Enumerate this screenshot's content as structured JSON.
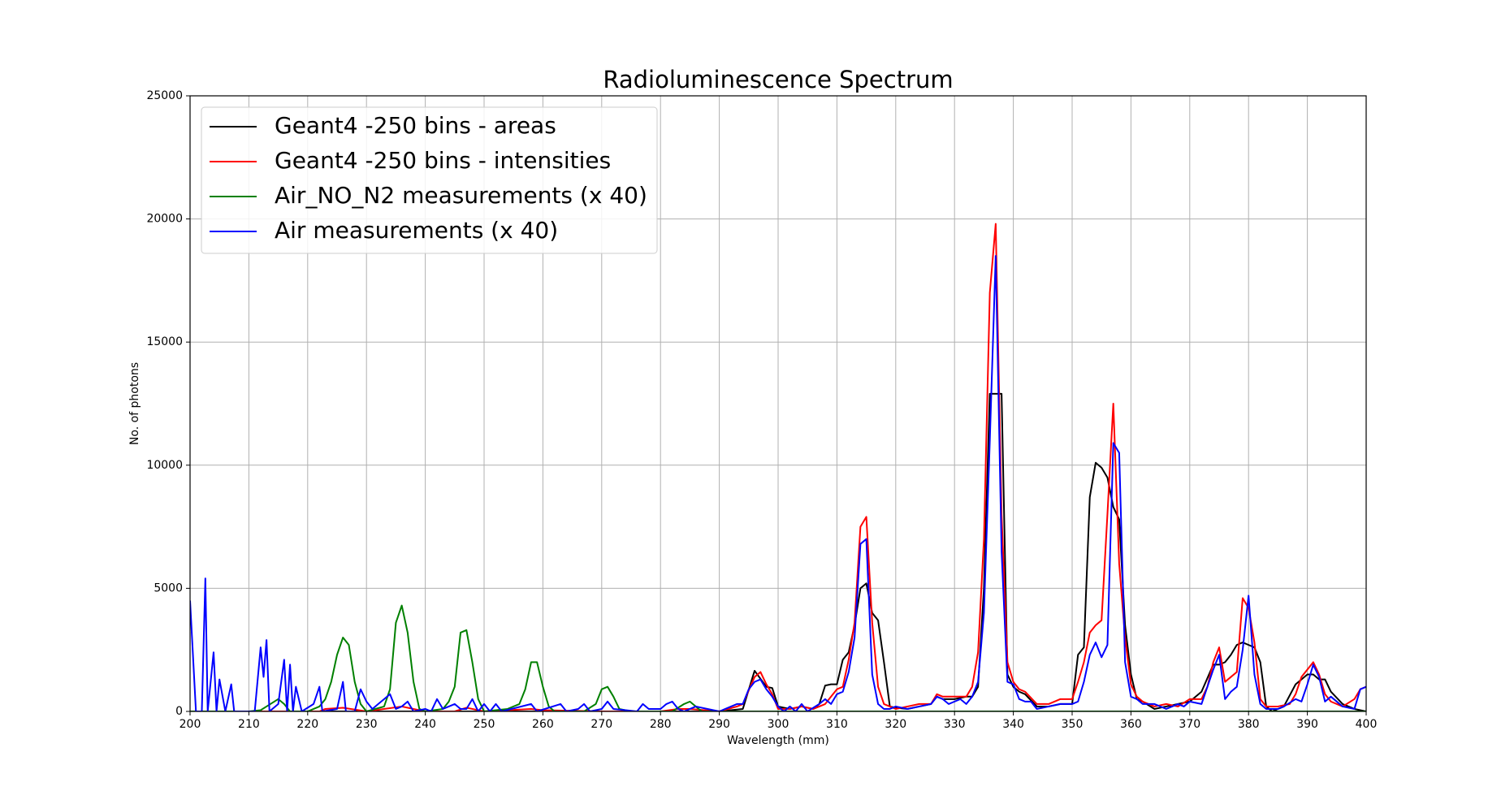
{
  "chart_data": {
    "type": "line",
    "title": "Radioluminescence Spectrum",
    "x_label": "Wavelength (mm)",
    "y_label": "No. of photons",
    "xlim": [
      200,
      400
    ],
    "xticks": [
      200,
      210,
      220,
      230,
      240,
      250,
      260,
      270,
      280,
      290,
      300,
      310,
      320,
      330,
      340,
      350,
      360,
      370,
      380,
      390,
      400
    ],
    "ylim": [
      0,
      25000
    ],
    "yticks": [
      0,
      5000,
      10000,
      15000,
      20000,
      25000
    ],
    "grid": true,
    "legend": "upper left",
    "series": [
      {
        "name": "Geant4 -250 bins - areas",
        "color": "#000000",
        "x": [
          200,
          290,
          294,
          296,
          298,
          299,
          300,
          302,
          304,
          306,
          307,
          308,
          309,
          310,
          311,
          312,
          313,
          314,
          315,
          316,
          317,
          318,
          319,
          320,
          322,
          324,
          326,
          327,
          328,
          330,
          332,
          333,
          334,
          335,
          336,
          337,
          338,
          339,
          340,
          341,
          342,
          344,
          346,
          348,
          350,
          351,
          352,
          353,
          354,
          355,
          356,
          357,
          358,
          359,
          360,
          361,
          362,
          364,
          366,
          368,
          370,
          372,
          374,
          375,
          376,
          377,
          378,
          379,
          380,
          381,
          382,
          383,
          384,
          386,
          388,
          389,
          390,
          391,
          392,
          393,
          394,
          396,
          398,
          400
        ],
        "values": [
          0,
          0,
          100,
          1650,
          1000,
          950,
          200,
          100,
          200,
          100,
          300,
          1050,
          1100,
          1100,
          2100,
          2400,
          3500,
          5000,
          5200,
          4000,
          3700,
          2000,
          200,
          150,
          100,
          200,
          300,
          600,
          500,
          500,
          600,
          600,
          1000,
          5000,
          12900,
          12900,
          12900,
          1500,
          1000,
          800,
          700,
          200,
          200,
          300,
          300,
          2300,
          2600,
          8700,
          10100,
          9900,
          9500,
          8300,
          7800,
          3500,
          1500,
          500,
          400,
          100,
          200,
          300,
          400,
          800,
          1900,
          1900,
          2000,
          2300,
          2700,
          2800,
          2700,
          2600,
          2000,
          200,
          0,
          200,
          1100,
          1300,
          1500,
          1500,
          1300,
          1300,
          800,
          300,
          100,
          0
        ]
      },
      {
        "name": "Geant4 -250 bins - intensities",
        "color": "#ff0000",
        "x": [
          200,
          222,
          223,
          226,
          230,
          233,
          236,
          240,
          245,
          247,
          250,
          258,
          260,
          270,
          280,
          283,
          285,
          290,
          293,
          294,
          296,
          297,
          298,
          299,
          300,
          302,
          304,
          306,
          308,
          309,
          310,
          311,
          312,
          313,
          314,
          315,
          316,
          317,
          318,
          319,
          320,
          322,
          324,
          326,
          327,
          328,
          330,
          332,
          333,
          334,
          335,
          336,
          337,
          338,
          339,
          340,
          341,
          342,
          344,
          346,
          348,
          350,
          351,
          352,
          353,
          354,
          355,
          356,
          357,
          358,
          359,
          360,
          361,
          362,
          364,
          366,
          368,
          370,
          372,
          373,
          374,
          375,
          376,
          377,
          378,
          379,
          380,
          381,
          382,
          383,
          385,
          387,
          388,
          389,
          390,
          391,
          392,
          393,
          394,
          396,
          398,
          399,
          400
        ],
        "values": [
          0,
          0,
          100,
          150,
          0,
          100,
          200,
          0,
          0,
          150,
          0,
          100,
          50,
          0,
          0,
          100,
          100,
          0,
          200,
          300,
          1400,
          1600,
          1100,
          700,
          100,
          100,
          200,
          100,
          300,
          600,
          900,
          1000,
          2100,
          3600,
          7500,
          7900,
          3600,
          1000,
          300,
          200,
          100,
          200,
          300,
          300,
          700,
          600,
          600,
          600,
          1000,
          2400,
          7000,
          17000,
          19800,
          8000,
          2000,
          1200,
          900,
          800,
          300,
          300,
          500,
          500,
          1200,
          2000,
          3200,
          3500,
          3700,
          8000,
          12500,
          6000,
          3000,
          1100,
          600,
          400,
          200,
          300,
          200,
          500,
          500,
          1000,
          2000,
          2600,
          1200,
          1400,
          1600,
          4600,
          4200,
          2800,
          500,
          200,
          200,
          300,
          700,
          1400,
          1700,
          2000,
          1500,
          700,
          400,
          200,
          500,
          900,
          1000
        ]
      },
      {
        "name": "Air_NO_N2 measurements (x 40)",
        "color": "#008000",
        "x": [
          200,
          210,
          212,
          213,
          215,
          216,
          217,
          220,
          222,
          223,
          224,
          225,
          226,
          227,
          228,
          229,
          230,
          233,
          234,
          235,
          236,
          237,
          238,
          239,
          240,
          243,
          244,
          245,
          246,
          247,
          248,
          249,
          250,
          254,
          256,
          257,
          258,
          259,
          260,
          261,
          262,
          267,
          269,
          270,
          271,
          272,
          273,
          275,
          282,
          284,
          285,
          286,
          287,
          400
        ],
        "values": [
          0,
          0,
          50,
          200,
          500,
          300,
          0,
          0,
          200,
          500,
          1200,
          2300,
          3000,
          2700,
          1200,
          300,
          0,
          200,
          900,
          3600,
          4300,
          3200,
          1200,
          100,
          0,
          100,
          400,
          1000,
          3200,
          3300,
          2000,
          500,
          0,
          100,
          300,
          900,
          2000,
          2000,
          1000,
          200,
          0,
          0,
          300,
          900,
          1000,
          600,
          100,
          0,
          0,
          300,
          400,
          200,
          0,
          0
        ]
      },
      {
        "name": "Air measurements (x 40)",
        "color": "#0000ff",
        "x": [
          200,
          201,
          202,
          202.6,
          203,
          204,
          204.5,
          205,
          206,
          207,
          207.5,
          211,
          212,
          212.5,
          213,
          213.5,
          215,
          216,
          216.5,
          217,
          217.5,
          218,
          219,
          221,
          222,
          222.5,
          225,
          226,
          226.5,
          228,
          229,
          230,
          231,
          232,
          233,
          234,
          235,
          236,
          237,
          238,
          240,
          241,
          242,
          243,
          245,
          246,
          247,
          248,
          249,
          250,
          251,
          252,
          253,
          258,
          259,
          263,
          264,
          266,
          267,
          268,
          270,
          271,
          272,
          276,
          277,
          278,
          280,
          281,
          282,
          283,
          284,
          286,
          288,
          290,
          292,
          293,
          294,
          295,
          296,
          297,
          298,
          299,
          300,
          301,
          302,
          303,
          304,
          305,
          307,
          308,
          309,
          310,
          311,
          312,
          313,
          314,
          315,
          316,
          317,
          318,
          319,
          320,
          322,
          324,
          326,
          327,
          328,
          329,
          330,
          331,
          332,
          333,
          334,
          335,
          336,
          337,
          338,
          339,
          340,
          341,
          342,
          343,
          344,
          346,
          348,
          350,
          351,
          352,
          353,
          354,
          355,
          356,
          357,
          358,
          359,
          360,
          361,
          362,
          364,
          366,
          368,
          369,
          370,
          372,
          374,
          375,
          376,
          377,
          378,
          379,
          380,
          381,
          382,
          383,
          385,
          386,
          388,
          389,
          390,
          391,
          392,
          393,
          394,
          396,
          398,
          399,
          400
        ],
        "values": [
          4500,
          0,
          0,
          5400,
          0,
          2400,
          0,
          1300,
          0,
          1100,
          0,
          0,
          2600,
          1400,
          2900,
          0,
          300,
          2100,
          0,
          1900,
          0,
          1000,
          0,
          300,
          1000,
          0,
          100,
          1200,
          0,
          0,
          900,
          400,
          100,
          300,
          500,
          700,
          100,
          200,
          400,
          0,
          100,
          0,
          500,
          100,
          300,
          100,
          100,
          500,
          0,
          300,
          0,
          300,
          0,
          300,
          0,
          300,
          0,
          100,
          300,
          0,
          100,
          400,
          100,
          0,
          300,
          100,
          100,
          300,
          400,
          100,
          0,
          200,
          100,
          0,
          200,
          300,
          300,
          900,
          1200,
          1300,
          900,
          600,
          200,
          0,
          200,
          0,
          300,
          0,
          300,
          500,
          300,
          700,
          800,
          1600,
          3000,
          6800,
          7000,
          1500,
          300,
          100,
          100,
          200,
          100,
          200,
          300,
          600,
          500,
          300,
          400,
          500,
          300,
          600,
          1200,
          4000,
          11000,
          18500,
          6500,
          1200,
          1100,
          500,
          400,
          400,
          100,
          200,
          300,
          300,
          400,
          1200,
          2300,
          2800,
          2200,
          2700,
          10900,
          10500,
          2000,
          600,
          500,
          300,
          300,
          100,
          300,
          200,
          400,
          300,
          1700,
          2300,
          500,
          800,
          1000,
          2500,
          4700,
          1500,
          300,
          100,
          100,
          200,
          500,
          400,
          1100,
          1900,
          1400,
          400,
          600,
          200,
          100,
          900,
          1000
        ]
      }
    ]
  }
}
